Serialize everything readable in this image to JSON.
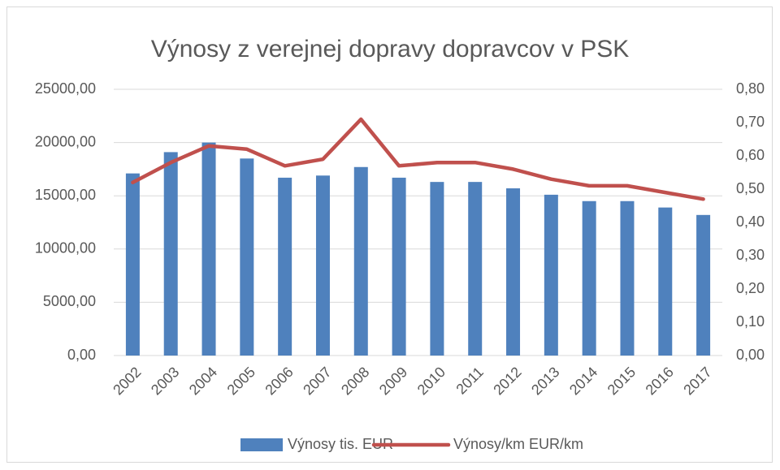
{
  "chart_data": {
    "type": "bar_line",
    "title": "Výnosy z verejnej dopravy dopravcov v PSK",
    "categories": [
      "2002",
      "2003",
      "2004",
      "2005",
      "2006",
      "2007",
      "2008",
      "2009",
      "2010",
      "2011",
      "2012",
      "2013",
      "2014",
      "2015",
      "2016",
      "2017"
    ],
    "series": [
      {
        "name": "Výnosy tis. EUR",
        "color": "#4f81bd",
        "type": "bar",
        "axis": "y",
        "values": [
          17100,
          19100,
          20000,
          18500,
          16700,
          16900,
          17700,
          16700,
          16300,
          16300,
          15700,
          15100,
          14500,
          14500,
          13900,
          13200
        ]
      },
      {
        "name": "Výnosy/km EUR/km",
        "color": "#c0504d",
        "type": "line",
        "axis": "y2",
        "values": [
          0.52,
          0.58,
          0.63,
          0.62,
          0.57,
          0.59,
          0.71,
          0.57,
          0.58,
          0.58,
          0.56,
          0.53,
          0.51,
          0.51,
          0.49,
          0.47
        ]
      }
    ],
    "ylim": [
      0,
      25000
    ],
    "yticks": [
      {
        "value": 0,
        "label": "0,00"
      },
      {
        "value": 5000,
        "label": "5000,00"
      },
      {
        "value": 10000,
        "label": "10000,00"
      },
      {
        "value": 15000,
        "label": "15000,00"
      },
      {
        "value": 20000,
        "label": "20000,00"
      },
      {
        "value": 25000,
        "label": "25000,00"
      }
    ],
    "y2lim": [
      0,
      0.8
    ],
    "y2ticks": [
      {
        "value": 0,
        "label": "0,00"
      },
      {
        "value": 0.1,
        "label": "0,10"
      },
      {
        "value": 0.2,
        "label": "0,20"
      },
      {
        "value": 0.3,
        "label": "0,30"
      },
      {
        "value": 0.4,
        "label": "0,40"
      },
      {
        "value": 0.5,
        "label": "0,50"
      },
      {
        "value": 0.6,
        "label": "0,60"
      },
      {
        "value": 0.7,
        "label": "0,70"
      },
      {
        "value": 0.8,
        "label": "0,80"
      }
    ],
    "grid": true,
    "legend": "bottom"
  }
}
